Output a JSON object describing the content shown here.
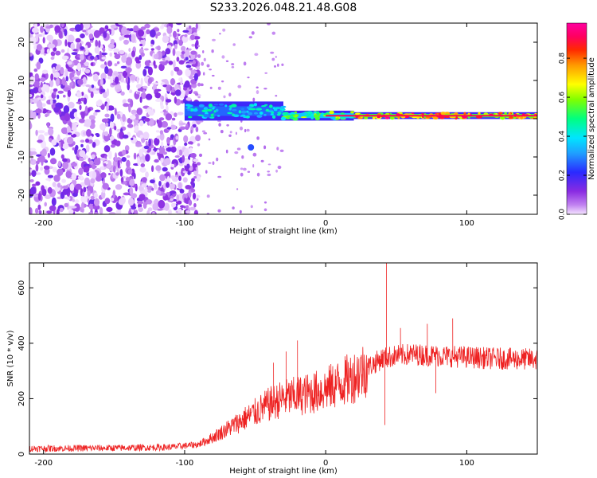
{
  "title": "S233.2026.048.21.48.G08",
  "chart_data": [
    {
      "type": "heatmap",
      "xlabel": "Height of straight line (km)",
      "ylabel": "Frequency (Hz)",
      "xlim": [
        -210,
        150
      ],
      "ylim": [
        -25,
        25
      ],
      "xticks": [
        -200,
        -100,
        0,
        100
      ],
      "yticks": [
        -20,
        -10,
        0,
        10,
        20
      ],
      "colorbar": {
        "label": "Normalized spectral amplitude",
        "range": [
          0,
          0.98
        ],
        "ticks": [
          "0.0",
          "0.2",
          "0.4",
          "0.6",
          "0.8"
        ]
      },
      "features": {
        "noise_region_x": [
          -210,
          -95
        ],
        "signal_start_x": -100,
        "signal_line_frequency_hz": 0.8,
        "signal_band_segments": [
          {
            "x": [
              -100,
              -30
            ],
            "freq_center": 2,
            "freq_halfwidth": 2.5,
            "amplitude": 0.45
          },
          {
            "x": [
              -30,
              20
            ],
            "freq_center": 0.8,
            "freq_halfwidth": 1.3,
            "amplitude": 0.6
          },
          {
            "x": [
              20,
              150
            ],
            "freq_center": 0.8,
            "freq_halfwidth": 0.9,
            "amplitude": 0.9
          }
        ],
        "isolated_blob": {
          "x": -53,
          "freq": -7.5,
          "amplitude": 0.25
        }
      }
    },
    {
      "type": "line",
      "xlabel": "Height of straight line (km)",
      "ylabel": "SNR (10 * v/v)",
      "xlim": [
        -210,
        150
      ],
      "ylim": [
        0,
        690
      ],
      "xticks": [
        -200,
        -100,
        0,
        100
      ],
      "yticks": [
        0,
        200,
        400,
        600
      ],
      "color": "#ee2222",
      "envelope_points": [
        [
          -210,
          20
        ],
        [
          -150,
          22
        ],
        [
          -110,
          25
        ],
        [
          -90,
          35
        ],
        [
          -80,
          60
        ],
        [
          -70,
          90
        ],
        [
          -60,
          120
        ],
        [
          -50,
          150
        ],
        [
          -40,
          180
        ],
        [
          -30,
          200
        ],
        [
          -20,
          210
        ],
        [
          -10,
          220
        ],
        [
          0,
          235
        ],
        [
          10,
          255
        ],
        [
          20,
          280
        ],
        [
          30,
          315
        ],
        [
          40,
          345
        ],
        [
          50,
          355
        ],
        [
          60,
          360
        ],
        [
          80,
          355
        ],
        [
          100,
          350
        ],
        [
          120,
          345
        ],
        [
          150,
          342
        ]
      ],
      "spikes": [
        {
          "x": -37,
          "y": 330
        },
        {
          "x": -28,
          "y": 370
        },
        {
          "x": -20,
          "y": 410
        },
        {
          "x": 43,
          "y": 690
        },
        {
          "x": 42,
          "y": 105
        },
        {
          "x": 53,
          "y": 455
        },
        {
          "x": 72,
          "y": 470
        },
        {
          "x": 90,
          "y": 490
        },
        {
          "x": 78,
          "y": 220
        }
      ]
    }
  ]
}
